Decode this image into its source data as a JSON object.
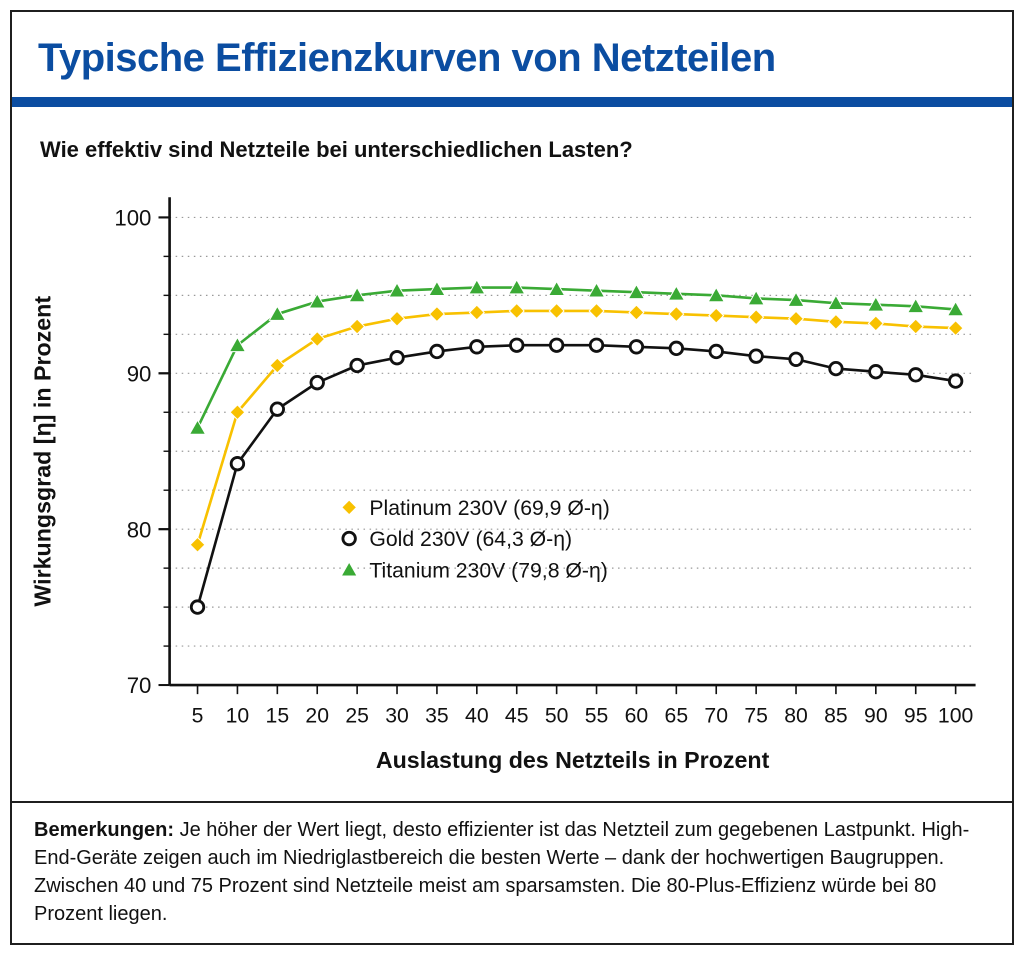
{
  "page": {
    "title": "Typische Effizienzkurven von Netzteilen",
    "subtitle": "Wie effektiv sind Netzteile bei unterschiedlichen Lasten?"
  },
  "colors": {
    "title_blue": "#0b4da1",
    "axis_black": "#111111",
    "grid_gray": "#999999",
    "platinum": "#f8c100",
    "gold": "#111111",
    "titanium": "#3aaa35"
  },
  "chart_data": {
    "type": "line",
    "title": "Typische Effizienzkurven von Netzteilen",
    "xlabel": "Auslastung des Netzteils in Prozent",
    "ylabel": "Wirkungsgrad [η] in Prozent",
    "xlim": [
      1.5,
      102.5
    ],
    "ylim": [
      70,
      100
    ],
    "yticks_major": [
      70,
      80,
      90,
      100
    ],
    "grid_step": 2.5,
    "grid_style": "dotted",
    "legend_position": "inside-left",
    "x": [
      5,
      10,
      15,
      20,
      25,
      30,
      35,
      40,
      45,
      50,
      55,
      60,
      65,
      70,
      75,
      80,
      85,
      90,
      95,
      100
    ],
    "series": [
      {
        "name": "Platinum 230V (69,9 Ø-η)",
        "marker": "diamond",
        "color": "#f8c100",
        "values": [
          79.0,
          87.5,
          90.5,
          92.2,
          93.0,
          93.5,
          93.8,
          93.9,
          94.0,
          94.0,
          94.0,
          93.9,
          93.8,
          93.7,
          93.6,
          93.5,
          93.3,
          93.2,
          93.0,
          92.9
        ]
      },
      {
        "name": "Gold 230V (64,3 Ø-η)",
        "marker": "circle-open",
        "color": "#111111",
        "values": [
          75.0,
          84.2,
          87.7,
          89.4,
          90.5,
          91.0,
          91.4,
          91.7,
          91.8,
          91.8,
          91.8,
          91.7,
          91.6,
          91.4,
          91.1,
          90.9,
          90.3,
          90.1,
          89.9,
          89.5
        ]
      },
      {
        "name": "Titanium 230V (79,8 Ø-η)",
        "marker": "triangle",
        "color": "#3aaa35",
        "values": [
          86.5,
          91.8,
          93.8,
          94.6,
          95.0,
          95.3,
          95.4,
          95.5,
          95.5,
          95.4,
          95.3,
          95.2,
          95.1,
          95.0,
          94.8,
          94.7,
          94.5,
          94.4,
          94.3,
          94.1
        ]
      }
    ]
  },
  "remarks": {
    "label": "Bemerkungen:",
    "text": " Je höher der Wert liegt, desto effizienter ist das Netzteil zum gegebenen Lastpunkt. High-End-Geräte zeigen auch im Niedriglastbereich die besten Werte – dank der hochwertigen Baugruppen. Zwischen 40 und 75 Prozent sind Netzteile meist am sparsamsten. Die 80-Plus-Effizienz würde bei 80 Prozent liegen."
  }
}
